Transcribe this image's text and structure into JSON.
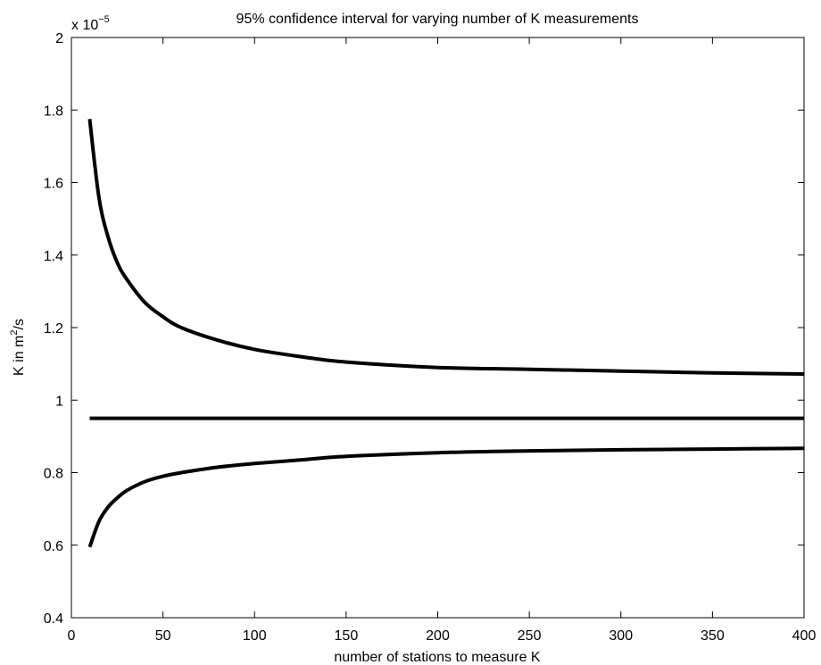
{
  "chart_data": {
    "type": "line",
    "title": "95% confidence interval for varying number of K measurements",
    "xlabel": "number of stations to measure K",
    "ylabel": {
      "prefix": "K in m",
      "sup": "2",
      "suffix": "/s"
    },
    "y_multiplier": {
      "base": "x 10",
      "exponent": "−5"
    },
    "xlim": [
      0,
      400
    ],
    "ylim": [
      0.4,
      2
    ],
    "x_ticks": [
      0,
      50,
      100,
      150,
      200,
      250,
      300,
      350,
      400
    ],
    "y_ticks": [
      0.4,
      0.6,
      0.8,
      1,
      1.2,
      1.4,
      1.6,
      1.8,
      2
    ],
    "x_tick_labels": [
      "0",
      "50",
      "100",
      "150",
      "200",
      "250",
      "300",
      "350",
      "400"
    ],
    "y_tick_labels": [
      "0.4",
      "0.6",
      "0.8",
      "1",
      "1.2",
      "1.4",
      "1.6",
      "1.8",
      "2"
    ],
    "grid": false,
    "line_color": "#000000",
    "series": [
      {
        "x": [
          10,
          15,
          20,
          25,
          30,
          40,
          50,
          60,
          80,
          100,
          125,
          150,
          200,
          250,
          300,
          350,
          400
        ],
        "y": [
          1.775,
          1.56,
          1.45,
          1.38,
          1.335,
          1.27,
          1.23,
          1.2,
          1.165,
          1.14,
          1.12,
          1.105,
          1.09,
          1.085,
          1.08,
          1.075,
          1.072
        ]
      },
      {
        "x": [
          10,
          400
        ],
        "y": [
          0.95,
          0.95
        ]
      },
      {
        "x": [
          10,
          15,
          20,
          25,
          30,
          40,
          50,
          60,
          80,
          100,
          125,
          150,
          200,
          250,
          300,
          350,
          400
        ],
        "y": [
          0.595,
          0.665,
          0.705,
          0.73,
          0.75,
          0.775,
          0.79,
          0.8,
          0.815,
          0.825,
          0.835,
          0.845,
          0.855,
          0.86,
          0.863,
          0.865,
          0.867
        ]
      }
    ]
  }
}
